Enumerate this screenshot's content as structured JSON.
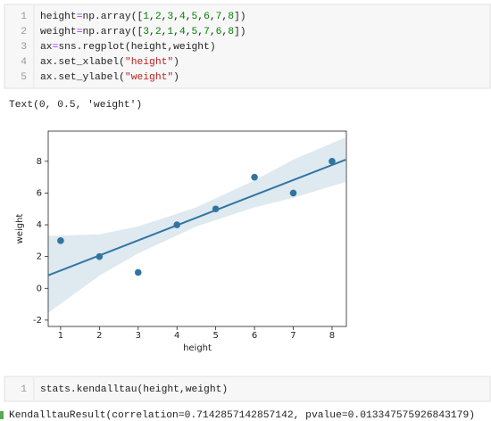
{
  "cells": [
    {
      "line_numbers": [
        "1",
        "2",
        "3",
        "4",
        "5"
      ],
      "code": [
        "height=np.array([1,2,3,4,5,6,7,8])",
        "weight=np.array([3,2,1,4,5,7,6,8])",
        "ax=sns.regplot(height,weight)",
        "ax.set_xlabel(\"height\")",
        "ax.set_ylabel(\"weight\")"
      ],
      "output": "Text(0, 0.5, 'weight')"
    },
    {
      "line_numbers": [
        "1"
      ],
      "code": [
        "stats.kendalltau(height,weight)"
      ],
      "output": "KendalltauResult(correlation=0.7142857142857142, pvalue=0.013347575926843179)"
    }
  ],
  "chart_data": {
    "type": "scatter",
    "x_label": "height",
    "y_label": "weight",
    "x": [
      1,
      2,
      3,
      4,
      5,
      6,
      7,
      8
    ],
    "values": [
      3,
      2,
      1,
      4,
      5,
      7,
      6,
      8
    ],
    "color": "#3274a1",
    "fit_line": {
      "x": [
        0.65,
        8.35
      ],
      "y": [
        0.79,
        8.1
      ]
    },
    "band": {
      "x": [
        0.65,
        2,
        3,
        4.5,
        6,
        7,
        8.35
      ],
      "lower": [
        -1.6,
        0.8,
        2.2,
        3.9,
        5.1,
        5.7,
        6.7
      ],
      "upper": [
        3.3,
        3.4,
        3.9,
        5.1,
        6.8,
        8.1,
        9.5
      ]
    },
    "xlim": [
      0.68,
      8.37
    ],
    "ylim": [
      -2.4,
      9.9
    ],
    "xticks": [
      1,
      2,
      3,
      4,
      5,
      6,
      7,
      8
    ],
    "yticks": [
      -2,
      0,
      2,
      4,
      6,
      8
    ]
  }
}
